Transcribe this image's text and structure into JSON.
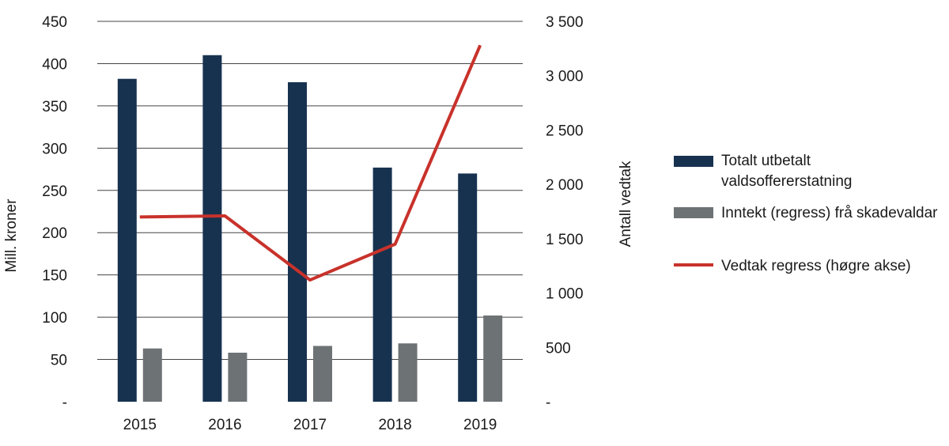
{
  "chart_data": {
    "type": "bar",
    "categories": [
      "2015",
      "2016",
      "2017",
      "2018",
      "2019"
    ],
    "series": [
      {
        "name": "Totalt utbetalt valdsoffererstatning",
        "kind": "bar",
        "axis": "left",
        "color": "#17324f",
        "values": [
          382,
          410,
          378,
          277,
          270
        ]
      },
      {
        "name": "Inntekt (regress) frå skadevaldar",
        "kind": "bar",
        "axis": "left",
        "color": "#6d7275",
        "values": [
          63,
          58,
          66,
          69,
          102
        ]
      },
      {
        "name": "Vedtak regress (høgre akse)",
        "kind": "line",
        "axis": "right",
        "color": "#c8322b",
        "values": [
          1700,
          1710,
          1120,
          1450,
          3280
        ]
      }
    ],
    "legend_lines": [
      [
        "Totalt utbetalt",
        "valdsoffererstatning"
      ],
      [
        "Inntekt (regress) frå skadevaldar"
      ],
      [
        "Vedtak regress (høgre akse)"
      ]
    ],
    "ylabel": "Mill. kroner",
    "y2label": "Antall vedtak",
    "ylim": [
      0,
      450
    ],
    "y2lim": [
      0,
      3500
    ],
    "yticks": [
      {
        "value": 0,
        "label": "-"
      },
      {
        "value": 50,
        "label": "50"
      },
      {
        "value": 100,
        "label": "100"
      },
      {
        "value": 150,
        "label": "150"
      },
      {
        "value": 200,
        "label": "200"
      },
      {
        "value": 250,
        "label": "250"
      },
      {
        "value": 300,
        "label": "300"
      },
      {
        "value": 350,
        "label": "350"
      },
      {
        "value": 400,
        "label": "400"
      },
      {
        "value": 450,
        "label": "450"
      }
    ],
    "y2ticks": [
      {
        "value": 0,
        "label": "-"
      },
      {
        "value": 500,
        "label": "500"
      },
      {
        "value": 1000,
        "label": "1 000"
      },
      {
        "value": 1500,
        "label": "1 500"
      },
      {
        "value": 2000,
        "label": "2 000"
      },
      {
        "value": 2500,
        "label": "2 500"
      },
      {
        "value": 3000,
        "label": "3 000"
      },
      {
        "value": 3500,
        "label": "3 500"
      }
    ],
    "grid": true,
    "legend_position": "right"
  }
}
